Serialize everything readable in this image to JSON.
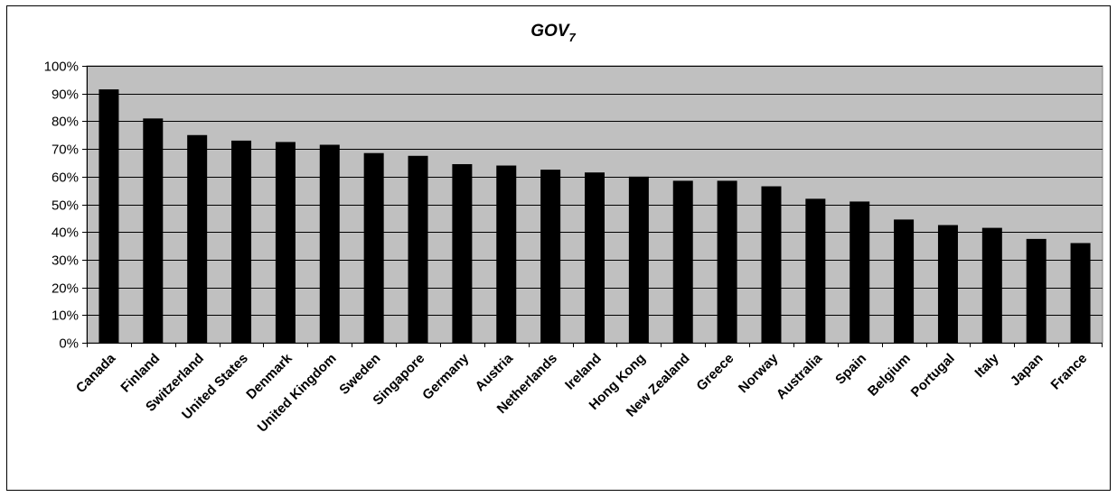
{
  "chart_data": {
    "type": "bar",
    "title": "GOV",
    "title_subscript": "7",
    "xlabel": "",
    "ylabel": "",
    "categories": [
      "Canada",
      "Finland",
      "Switzerland",
      "United States",
      "Denmark",
      "United Kingdom",
      "Sweden",
      "Singapore",
      "Germany",
      "Austria",
      "Netherlands",
      "Ireland",
      "Hong Kong",
      "New Zealand",
      "Greece",
      "Norway",
      "Australia",
      "Spain",
      "Belgium",
      "Portugal",
      "Italy",
      "Japan",
      "France"
    ],
    "values": [
      91.5,
      81,
      75,
      73,
      72.5,
      71.5,
      68.5,
      67.5,
      64.5,
      64,
      62.5,
      61.5,
      60,
      58.5,
      58.5,
      56.5,
      52,
      51,
      44.5,
      42.5,
      41.5,
      37.5,
      36
    ],
    "ylim": [
      0,
      100
    ],
    "yticks": [
      "0%",
      "10%",
      "20%",
      "30%",
      "40%",
      "50%",
      "60%",
      "70%",
      "80%",
      "90%",
      "100%"
    ],
    "grid": true,
    "legend": "none",
    "colors": {
      "plot_background": "#c0c0c0",
      "bar": "#000000",
      "gridline": "#000000"
    }
  }
}
